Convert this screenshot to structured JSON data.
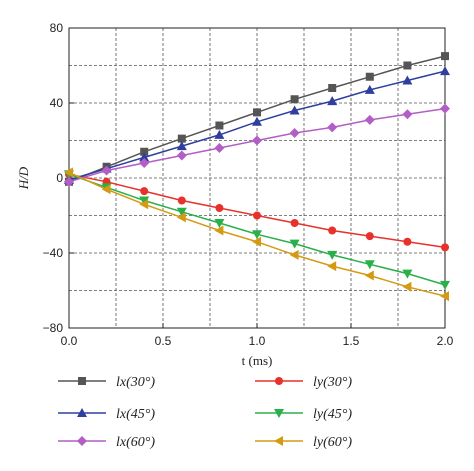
{
  "chart_data": {
    "type": "line",
    "xlabel": "t (ms)",
    "ylabel": "H/D",
    "xlim": [
      0,
      2.0
    ],
    "ylim": [
      -80,
      80
    ],
    "x_ticks": [
      "0.0",
      "0.5",
      "1.0",
      "1.5",
      "2.0"
    ],
    "y_ticks": [
      "80",
      "40",
      "0",
      "−40",
      "−80"
    ],
    "grid": true,
    "grid_style": "dashed",
    "legend_placement": "below plot, two columns",
    "x": [
      0,
      0.2,
      0.4,
      0.6,
      0.8,
      1.0,
      1.2,
      1.4,
      1.6,
      1.8,
      2.0
    ],
    "series": [
      {
        "name": "lx(30°)",
        "color": "#555555",
        "marker": "square",
        "values": [
          -2,
          6,
          14,
          21,
          28,
          35,
          42,
          48,
          54,
          60,
          65
        ]
      },
      {
        "name": "ly(30°)",
        "color": "#e8312a",
        "marker": "circle",
        "values": [
          2,
          -2,
          -7,
          -12,
          -16,
          -20,
          -24,
          -28,
          -31,
          -34,
          -37
        ]
      },
      {
        "name": "lx(45°)",
        "color": "#2e3f9e",
        "marker": "triangle-up",
        "values": [
          -1,
          5,
          11,
          17,
          23,
          30,
          36,
          41,
          47,
          52,
          57
        ]
      },
      {
        "name": "ly(45°)",
        "color": "#2ab04a",
        "marker": "triangle-down",
        "values": [
          2,
          -5,
          -12,
          -18,
          -24,
          -30,
          -35,
          -41,
          -46,
          -51,
          -57
        ]
      },
      {
        "name": "lx(60°)",
        "color": "#b35ec6",
        "marker": "diamond",
        "values": [
          -2,
          4,
          8,
          12,
          16,
          20,
          24,
          27,
          31,
          34,
          37
        ]
      },
      {
        "name": "ly(60°)",
        "color": "#d49b12",
        "marker": "triangle-left",
        "values": [
          3,
          -6,
          -14,
          -21,
          -28,
          -34,
          -41,
          -47,
          -52,
          -58,
          -63
        ]
      }
    ]
  }
}
